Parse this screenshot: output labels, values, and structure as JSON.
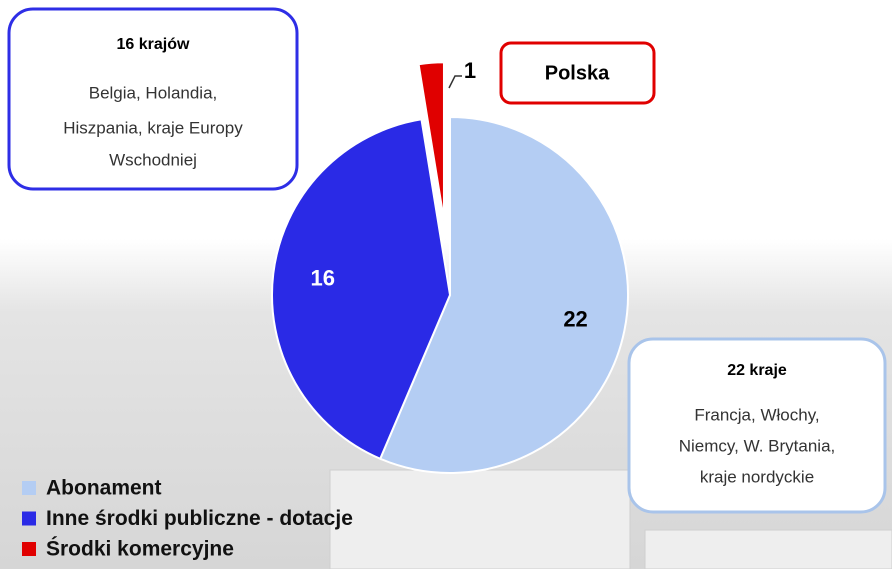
{
  "chart_data": {
    "type": "pie",
    "categories": [
      "Abonament",
      "Inne środki publiczne - dotacje",
      "Środki komercyjne"
    ],
    "values": [
      22,
      16,
      1
    ],
    "colors": [
      "#b4cdf3",
      "#2a2ae6",
      "#e00000"
    ],
    "annotations": [
      {
        "title": "16 krajów",
        "lines": [
          "Belgia, Holandia,",
          "Hiszpania, kraje Europy",
          "Wschodniej"
        ]
      },
      {
        "title": "Polska"
      },
      {
        "title": "22 kraje",
        "lines": [
          "Francja, Włochy,",
          "Niemcy, W. Brytania,",
          "kraje nordyckie"
        ]
      }
    ]
  }
}
